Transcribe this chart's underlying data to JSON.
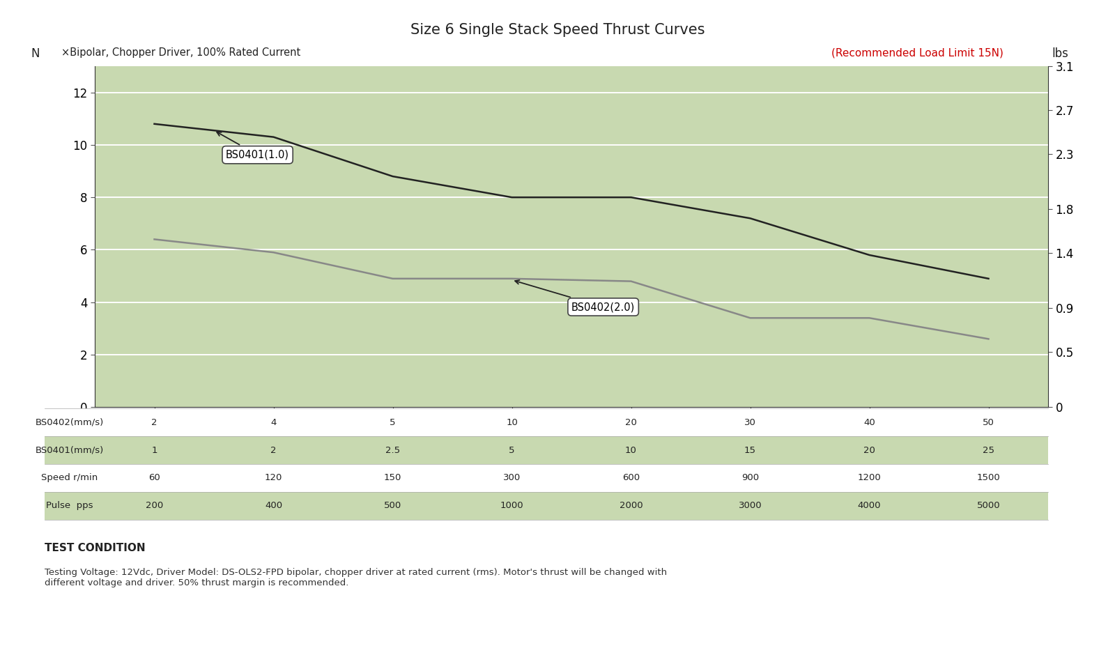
{
  "title": "Size 6 Single Stack Speed Thrust Curves",
  "left_ylabel": "N",
  "right_ylabel": "lbs",
  "subtitle_left": "×Bipolar, Chopper Driver, 100% Rated Current",
  "subtitle_right": "(Recommended Load Limit 15N)",
  "background_color": "#c8d9b0",
  "ylim_left": [
    0,
    13
  ],
  "ylim_right": [
    0,
    3.1
  ],
  "yticks_left": [
    0,
    2,
    4,
    6,
    8,
    10,
    12
  ],
  "yticks_right": [
    0,
    0.5,
    0.9,
    1.4,
    1.8,
    2.3,
    2.7,
    3.1
  ],
  "x_positions": [
    1,
    2,
    3,
    4,
    5,
    6,
    7,
    8
  ],
  "bs0401_y": [
    10.8,
    10.3,
    8.8,
    8.0,
    8.0,
    7.2,
    5.8,
    4.9
  ],
  "bs0402_y": [
    6.4,
    5.9,
    4.9,
    4.9,
    4.8,
    3.4,
    3.4,
    2.6
  ],
  "bs0401_color": "#222222",
  "bs0402_color": "#888888",
  "x_tick_labels": [
    "2",
    "4",
    "5",
    "10",
    "20",
    "30",
    "40",
    "50"
  ],
  "table_rows": [
    {
      "label": "BS0402(mm/s)",
      "values": [
        "2",
        "4",
        "5",
        "10",
        "20",
        "30",
        "40",
        "50"
      ],
      "bg": "#ffffff"
    },
    {
      "label": "BS0401(mm/s)",
      "values": [
        "1",
        "2",
        "2.5",
        "5",
        "10",
        "15",
        "20",
        "25"
      ],
      "bg": "#c8d9b0"
    },
    {
      "label": "Speed r/min",
      "values": [
        "60",
        "120",
        "150",
        "300",
        "600",
        "900",
        "1200",
        "1500"
      ],
      "bg": "#ffffff"
    },
    {
      "label": "Pulse  pps",
      "values": [
        "200",
        "400",
        "500",
        "1000",
        "2000",
        "3000",
        "4000",
        "5000"
      ],
      "bg": "#c8d9b0"
    }
  ],
  "test_condition_title": "TEST CONDITION",
  "test_condition_text": "Testing Voltage: 12Vdc, Driver Model: DS-OLS2-FPD bipolar, chopper driver at rated current (rms). Motor's thrust will be changed with\ndifferent voltage and driver. 50% thrust margin is recommended."
}
